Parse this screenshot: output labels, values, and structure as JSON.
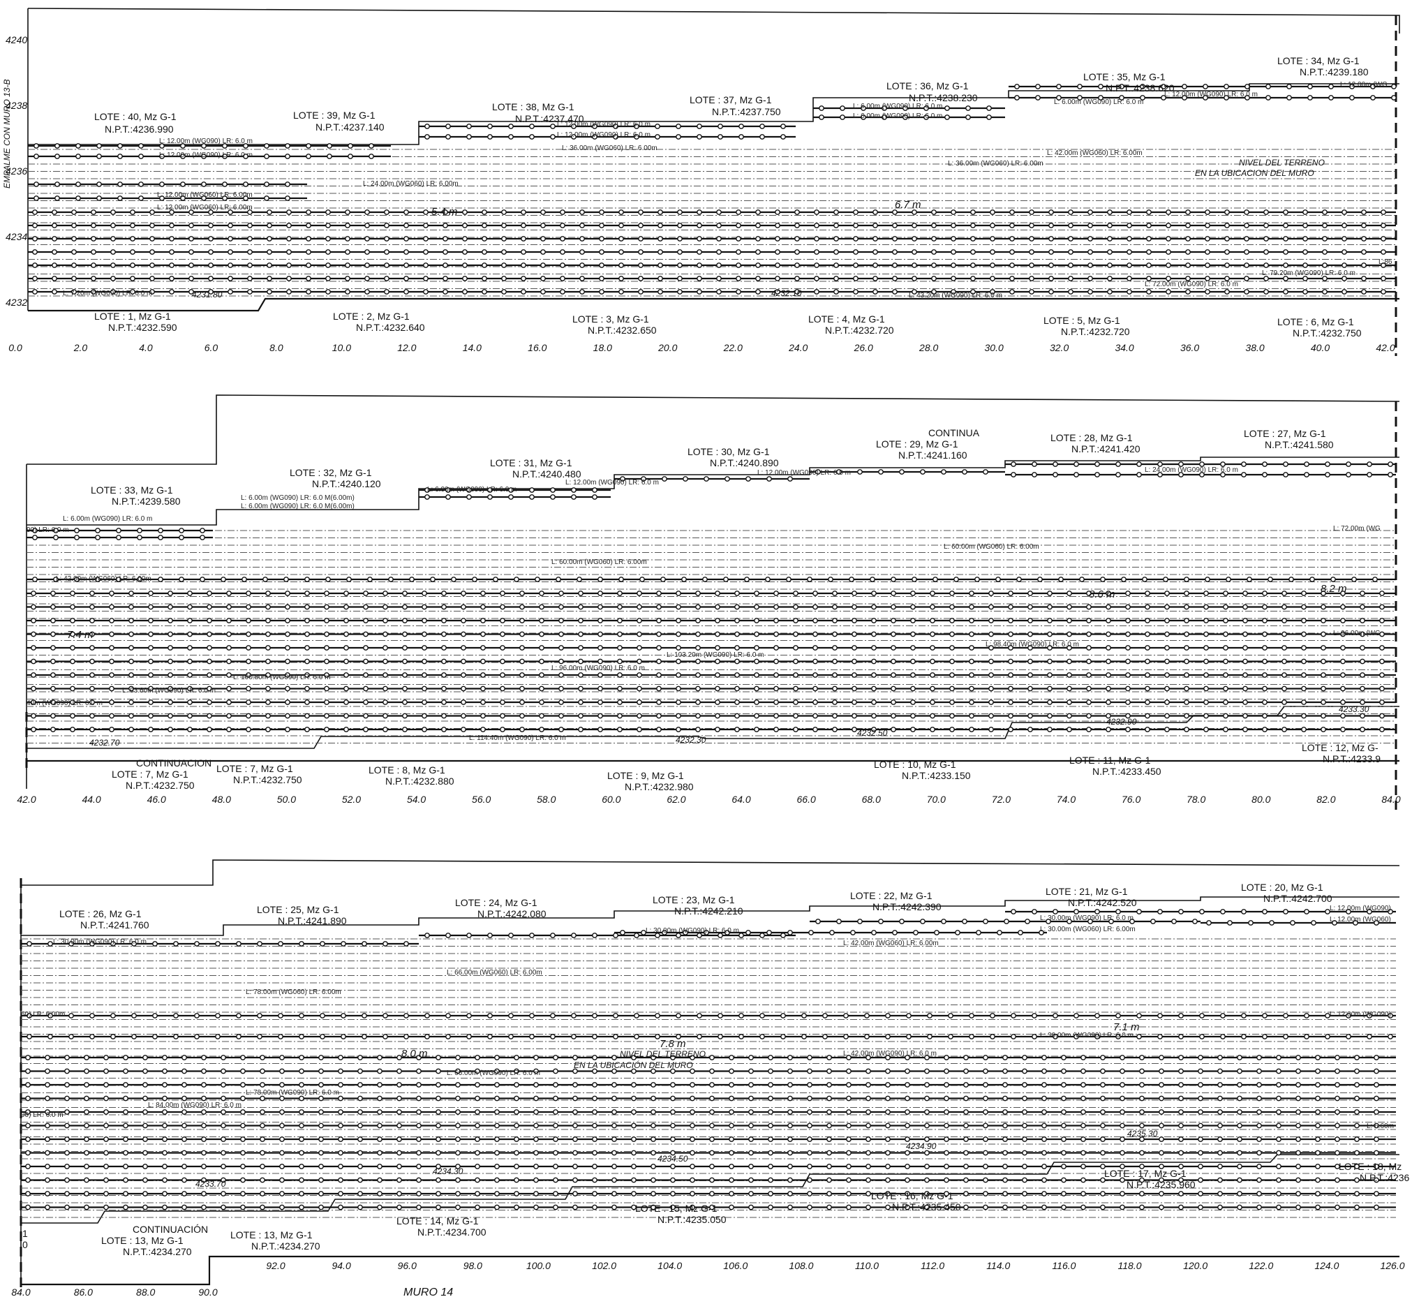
{
  "panels": [
    {
      "id": "panel1",
      "x_ticks": [
        "0.0",
        "2.0",
        "4.0",
        "6.0",
        "8.0",
        "10.0",
        "12.0",
        "14.0",
        "16.0",
        "18.0",
        "20.0",
        "22.0",
        "24.0",
        "26.0",
        "28.0",
        "30.0",
        "32.0",
        "34.0",
        "36.0",
        "38.0",
        "40.0",
        "42.0"
      ],
      "y_ticks": [
        "4240",
        "4238",
        "4236",
        "4234",
        "4232"
      ],
      "left_note": "EMPALME CON MURO 13-B",
      "top_lots": [
        {
          "lote": "LOTE : 40, Mz G-1",
          "npt": "N.P.T.:4236.990"
        },
        {
          "lote": "LOTE : 39, Mz G-1",
          "npt": "N.P.T.:4237.140"
        },
        {
          "lote": "LOTE : 38, Mz G-1",
          "npt": "N.P.T.:4237.470"
        },
        {
          "lote": "LOTE : 37, Mz G-1",
          "npt": "N.P.T.:4237.750"
        },
        {
          "lote": "LOTE : 36, Mz G-1",
          "npt": "N.P.T.:4238.230"
        },
        {
          "lote": "LOTE : 35, Mz G-1",
          "npt": "N.P.T.:4238.620"
        },
        {
          "lote": "LOTE : 34, Mz G-1",
          "npt": "N.P.T.:4239.180"
        }
      ],
      "bottom_lots": [
        {
          "lote": "LOTE : 1, Mz G-1",
          "npt": "N.P.T.:4232.590"
        },
        {
          "lote": "LOTE : 2, Mz G-1",
          "npt": "N.P.T.:4232.640"
        },
        {
          "lote": "LOTE : 3, Mz G-1",
          "npt": "N.P.T.:4232.650"
        },
        {
          "lote": "LOTE : 4, Mz G-1",
          "npt": "N.P.T.:4232.720"
        },
        {
          "lote": "LOTE : 5, Mz G-1",
          "npt": "N.P.T.:4232.720"
        },
        {
          "lote": "LOTE : 6, Mz G-1",
          "npt": "N.P.T.:4232.750"
        }
      ],
      "reinforcement": [
        "L: 12.00m (WG090) LR: 6.0 m",
        "L: 12.00m (WG090) LR: 6.0 m",
        "L: 12.00m (WG060) LR: 6.00m",
        "L: 12.00m (WG060) LR: 6.00m",
        "L: 24.00m (WG060) LR: 6.00m",
        "L: 12.00m (WG090) LR: 6.0 m",
        "L: 12.00m (WG090) LR: 6.0 m",
        "L: 36.00m (WG060) LR: 6.00m",
        "L: 6.00m (WG090) LR: 6.0 m",
        "L: 6.00m (WG090) LR: 6.0 m",
        "L: 36.00m (WG060) LR: 6.00m",
        "L: 6.00m (WG090) LR: 6.0 m",
        "L: 12.00m (WG090) LR: 6.0 m",
        "L: 42.00m (WG060) LR: 6.00m",
        "L: 12.00m (WG",
        "L: 7.20m (WG090) LR: 6.0 m",
        "L: 43.20m (WG090) LR: 6.0 m",
        "L: 72.00m (WG090) LR: 6.0 m",
        "L: 79.20m (WG090) LR: 6.0 m"
      ],
      "heights": [
        "5.4 m",
        "6.7 m"
      ],
      "levels": [
        "4231.80",
        "4232.10"
      ],
      "cut_label": "L:86",
      "ground_note_1": "NIVEL DEL TERRENO",
      "ground_note_2": "EN LA UBICACION DEL MURO"
    },
    {
      "id": "panel2",
      "x_ticks": [
        "42.0",
        "44.0",
        "46.0",
        "48.0",
        "50.0",
        "52.0",
        "54.0",
        "56.0",
        "58.0",
        "60.0",
        "62.0",
        "64.0",
        "66.0",
        "68.0",
        "70.0",
        "72.0",
        "74.0",
        "76.0",
        "78.0",
        "80.0",
        "82.0",
        "84.0"
      ],
      "top_lots": [
        {
          "lote": "LOTE : 33, Mz G-1",
          "npt": "N.P.T.:4239.580"
        },
        {
          "lote": "LOTE : 32, Mz G-1",
          "npt": "N.P.T.:4240.120"
        },
        {
          "lote": "LOTE : 31, Mz G-1",
          "npt": "N.P.T.:4240.480"
        },
        {
          "lote": "LOTE : 30, Mz G-1",
          "npt": "N.P.T.:4240.890"
        },
        {
          "lote": "LOTE : 29, Mz G-1",
          "npt": "N.P.T.:4241.160",
          "note": "CONTINUA"
        },
        {
          "lote": "LOTE : 28, Mz G-1",
          "npt": "N.P.T.:4241.420"
        },
        {
          "lote": "LOTE : 27, Mz G-1",
          "npt": "N.P.T.:4241.580"
        }
      ],
      "bottom_lots": [
        {
          "lote": "LOTE : 7, Mz G-1",
          "npt": "N.P.T.:4232.750",
          "note": "CONTINUACION"
        },
        {
          "lote": "LOTE : 7, Mz G-1",
          "npt": "N.P.T.:4232.750"
        },
        {
          "lote": "LOTE : 8, Mz G-1",
          "npt": "N.P.T.:4232.880"
        },
        {
          "lote": "LOTE : 9, Mz G-1",
          "npt": "N.P.T.:4232.980"
        },
        {
          "lote": "LOTE : 10, Mz G-1",
          "npt": "N.P.T.:4233.150"
        },
        {
          "lote": "LOTE : 11, Mz G-1",
          "npt": "N.P.T.:4233.450"
        },
        {
          "lote": "LOTE : 12, Mz G-",
          "npt": "N.P.T.:4233.9"
        }
      ],
      "reinforcement": [
        "L: 6.00m (WG090) LR: 6.0 M(6.00m)",
        "L: 6.00m (WG090) LR: 6.0 M(6.00m)",
        "L: 6.00m (WG090) LR: 6.0 m",
        "L: 6.00m (WG090) LR: 6.0 m",
        "L: 12.00m (WG090) LR: 6.0 m",
        "L: 12.00m (WG090) LR: 6.0 m",
        "L: 24.00m (WG090) LR: 6.0 m",
        "L: 42.00m (WG060) LR: 6.00m",
        "L: 60.00m (WG060) LR: 6.00m",
        "L: 60.00m (WG060) LR: 6.00m",
        "L: 72.00m (WG",
        "L: 103.20m (WG090) LR: 6.0 m",
        "L: 98.40m (WG090) LR: 6.0 m",
        "L: 96.00m (WG090) LR: 6.0 m",
        "L: 100.80m (WG090) LR: 6.0 m",
        "L: 93.60m (WG090) LR: 6.0 m",
        "L: 96.00m (WG",
        "L: 114.40m (WG090) LR: 6.0 m",
        "90) LR: 6.0 m",
        "40m (WG090) LR: 6.0 m"
      ],
      "heights": [
        "7.4 m",
        "8.6 m",
        "8.2 m"
      ],
      "levels": [
        "4232.70",
        "4232.30",
        "4232.50",
        "4232.90",
        "4233.30"
      ]
    },
    {
      "id": "panel3",
      "x_ticks_left": [
        "84.0",
        "86.0",
        "88.0",
        "90.0"
      ],
      "x_ticks": [
        "92.0",
        "94.0",
        "96.0",
        "98.0",
        "100.0",
        "102.0",
        "104.0",
        "106.0",
        "108.0",
        "110.0",
        "112.0",
        "114.0",
        "116.0",
        "118.0",
        "120.0",
        "122.0",
        "124.0",
        "126.0"
      ],
      "top_lots": [
        {
          "lote": "LOTE : 26, Mz G-1",
          "npt": "N.P.T.:4241.760"
        },
        {
          "lote": "LOTE : 25, Mz G-1",
          "npt": "N.P.T.:4241.890"
        },
        {
          "lote": "LOTE : 24, Mz G-1",
          "npt": "N.P.T.:4242.080"
        },
        {
          "lote": "LOTE : 23, Mz G-1",
          "npt": "N.P.T.:4242.210"
        },
        {
          "lote": "LOTE : 22, Mz G-1",
          "npt": "N.P.T.:4242.390"
        },
        {
          "lote": "LOTE : 21, Mz G-1",
          "npt": "N.P.T.:4242.520"
        },
        {
          "lote": "LOTE : 20, Mz G-1",
          "npt": "N.P.T.:4242.700"
        }
      ],
      "bottom_lots": [
        {
          "lote": "LOTE : 13, Mz G-1",
          "npt": "N.P.T.:4234.270",
          "note": "CONTINUACIÓN"
        },
        {
          "lote": "LOTE : 13, Mz G-1",
          "npt": "N.P.T.:4234.270"
        },
        {
          "lote": "LOTE : 14, Mz G-1",
          "npt": "N.P.T.:4234.700"
        },
        {
          "lote": "LOTE : 15, Mz G-1",
          "npt": "N.P.T.:4235.050"
        },
        {
          "lote": "LOTE : 16, Mz G-1",
          "npt": "N.P.T.:4235.450"
        },
        {
          "lote": "LOTE : 17, Mz G-1",
          "npt": "N.P.T.:4235.960"
        },
        {
          "lote": "LOTE : 18, Mz",
          "npt": "N.P.T.:4236"
        }
      ],
      "reinforcement": [
        "L: 30.00m (WG090) LR: 6.0 m",
        "L: 30.00m (WG090) LR: 6.0 m",
        "L: 30.00m (WG090) LR: 6.0 m",
        "L: 30.00m (WG060) LR: 6.00m",
        "L: 42.00m (WG060) LR: 6.00m",
        "L: 12.00m (WG090)",
        "L: 12.00m (WG060)",
        "L: 66.00m (WG060) LR: 6.00m",
        "L: 78.00m (WG060) LR: 6.00m",
        "60) LR: 6.00m",
        "L: 12.00m (WG090)",
        "L: 30.00m (WG090) LR: 6.0 m",
        "L: 42.00m (WG090) LR: 6.0 m",
        "L: 66.00m (WG090) LR: 6.0 m",
        "L: 78.00m (WG090) LR: 6.0 m",
        "L: 84.00m (WG090) LR: 6.0 m",
        "90) LR: 6.0 m",
        "L: 6.60m"
      ],
      "heights": [
        "8.0 m",
        "7.8 m",
        "7.1 m"
      ],
      "levels": [
        "4233.70",
        "4234.30",
        "4234.50",
        "4234.90",
        "4235.30"
      ],
      "ground_note_1": "NIVEL DEL TERRENO",
      "ground_note_2": "EN LA UBICACIÓN DEL MURO",
      "edge_marks": [
        "1",
        "0"
      ],
      "footer": "MURO  14"
    }
  ]
}
